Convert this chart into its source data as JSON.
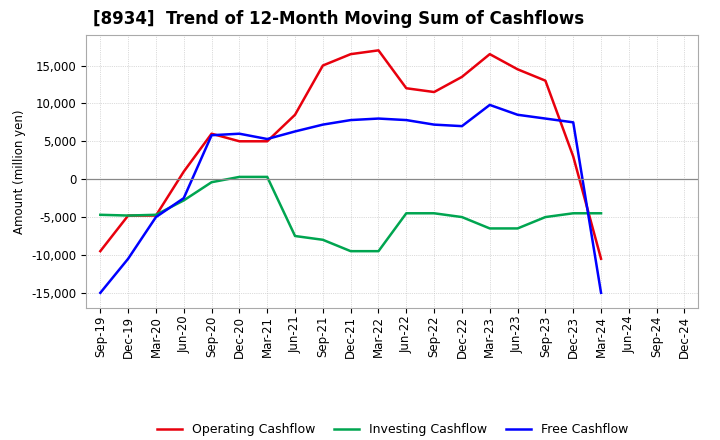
{
  "title": "[8934]  Trend of 12-Month Moving Sum of Cashflows",
  "ylabel": "Amount (million yen)",
  "x_labels": [
    "Sep-19",
    "Dec-19",
    "Mar-20",
    "Jun-20",
    "Sep-20",
    "Dec-20",
    "Mar-21",
    "Jun-21",
    "Sep-21",
    "Dec-21",
    "Mar-22",
    "Jun-22",
    "Sep-22",
    "Dec-22",
    "Mar-23",
    "Jun-23",
    "Sep-23",
    "Dec-23",
    "Mar-24",
    "Jun-24",
    "Sep-24",
    "Dec-24"
  ],
  "operating": [
    -9500,
    -4800,
    -4800,
    1000,
    6000,
    5000,
    5000,
    8500,
    15000,
    16500,
    17000,
    12000,
    11500,
    13500,
    16500,
    14500,
    13000,
    3000,
    -10500,
    null,
    null,
    null
  ],
  "investing": [
    -4700,
    -4800,
    -4700,
    -2800,
    -400,
    300,
    300,
    -7500,
    -8000,
    -9500,
    -9500,
    -4500,
    -4500,
    -5000,
    -6500,
    -6500,
    -5000,
    -4500,
    -4500,
    null,
    null,
    null
  ],
  "free": [
    -15000,
    -10500,
    -5000,
    -2500,
    5800,
    6000,
    5300,
    6300,
    7200,
    7800,
    8000,
    7800,
    7200,
    7000,
    9800,
    8500,
    8000,
    7500,
    -15000,
    null,
    null,
    null
  ],
  "ylim": [
    -17000,
    19000
  ],
  "yticks": [
    -15000,
    -10000,
    -5000,
    0,
    5000,
    10000,
    15000
  ],
  "operating_color": "#e8000d",
  "investing_color": "#00a550",
  "free_color": "#0000ff",
  "bg_color": "#ffffff",
  "plot_bg_color": "#ffffff",
  "grid_color": "#bbbbbb",
  "zero_line_color": "#888888",
  "legend_labels": [
    "Operating Cashflow",
    "Investing Cashflow",
    "Free Cashflow"
  ],
  "title_fontsize": 12,
  "axis_fontsize": 8.5,
  "ylabel_fontsize": 8.5,
  "legend_fontsize": 9,
  "linewidth": 1.8
}
